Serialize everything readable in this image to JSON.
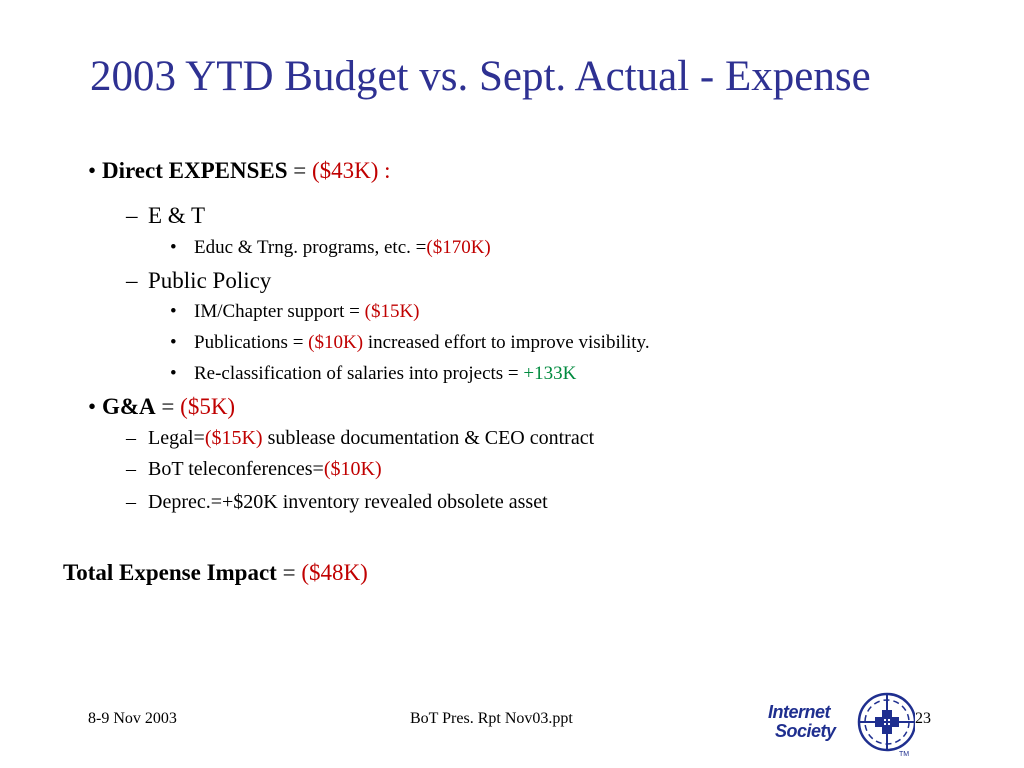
{
  "slide": {
    "title": "2003 YTD Budget vs. Sept. Actual - Expense",
    "bullet_char": "•",
    "dash_char": "–",
    "items": {
      "direct": {
        "label": "Direct EXPENSES",
        "eq": " = ",
        "value": "($43K) :"
      },
      "et": {
        "label": "E & T"
      },
      "educ": {
        "label": "Educ & Trng. programs, etc. =",
        "value": "($170K)"
      },
      "public_policy": {
        "label": "Public Policy"
      },
      "im_chapter": {
        "label": "IM/Chapter support = ",
        "value": "($15K)"
      },
      "publications": {
        "label": "Publications = ",
        "value": "($10K)",
        "note": " increased effort to improve visibility."
      },
      "reclass": {
        "label": "Re-classification of salaries into projects = ",
        "value": "+133K"
      },
      "ga": {
        "label": "G&A",
        "eq": " = ",
        "value": "($5K)"
      },
      "legal": {
        "label": "Legal=",
        "value": "($15K)",
        "note": " sublease documentation & CEO contract"
      },
      "bot_tele": {
        "label": "BoT teleconferences=",
        "value": "($10K)"
      },
      "deprec": {
        "label": "Deprec.=+$20K inventory revealed obsolete asset"
      }
    },
    "total": {
      "label": "Total Expense Impact",
      "eq": " = ",
      "value": "($48K)"
    }
  },
  "footer": {
    "date": "8-9 Nov 2003",
    "file": "BoT Pres. Rpt Nov03.ppt",
    "page": "23"
  },
  "logo": {
    "line1": "Internet",
    "line2": "Society",
    "tm": "TM"
  },
  "colors": {
    "title": "#2e3192",
    "negative": "#c00000",
    "positive": "#008a3e",
    "logo": "#1f2f8f"
  }
}
